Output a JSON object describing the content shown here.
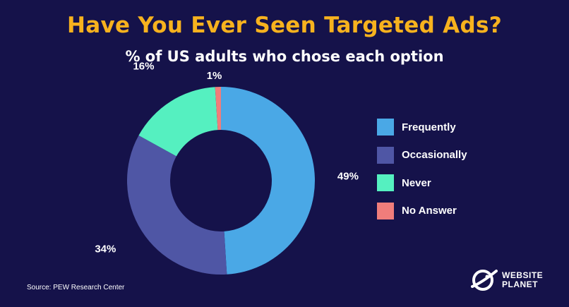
{
  "chart_data": {
    "type": "pie",
    "title": "Have You Ever Seen Targeted Ads?",
    "subtitle": "% of US adults who chose each option",
    "categories": [
      "Frequently",
      "Occasionally",
      "Never",
      "No Answer"
    ],
    "values": [
      49,
      34,
      16,
      1
    ],
    "value_labels": [
      "49%",
      "34%",
      "16%",
      "1%"
    ],
    "colors": [
      "#4aa8e6",
      "#4f56a5",
      "#55f0c0",
      "#f07d7b"
    ],
    "donut": true,
    "legend_position": "right"
  },
  "source": "Source: PEW Research Center",
  "logo": {
    "line1": "WEBSITE",
    "line2": "PLANET"
  }
}
